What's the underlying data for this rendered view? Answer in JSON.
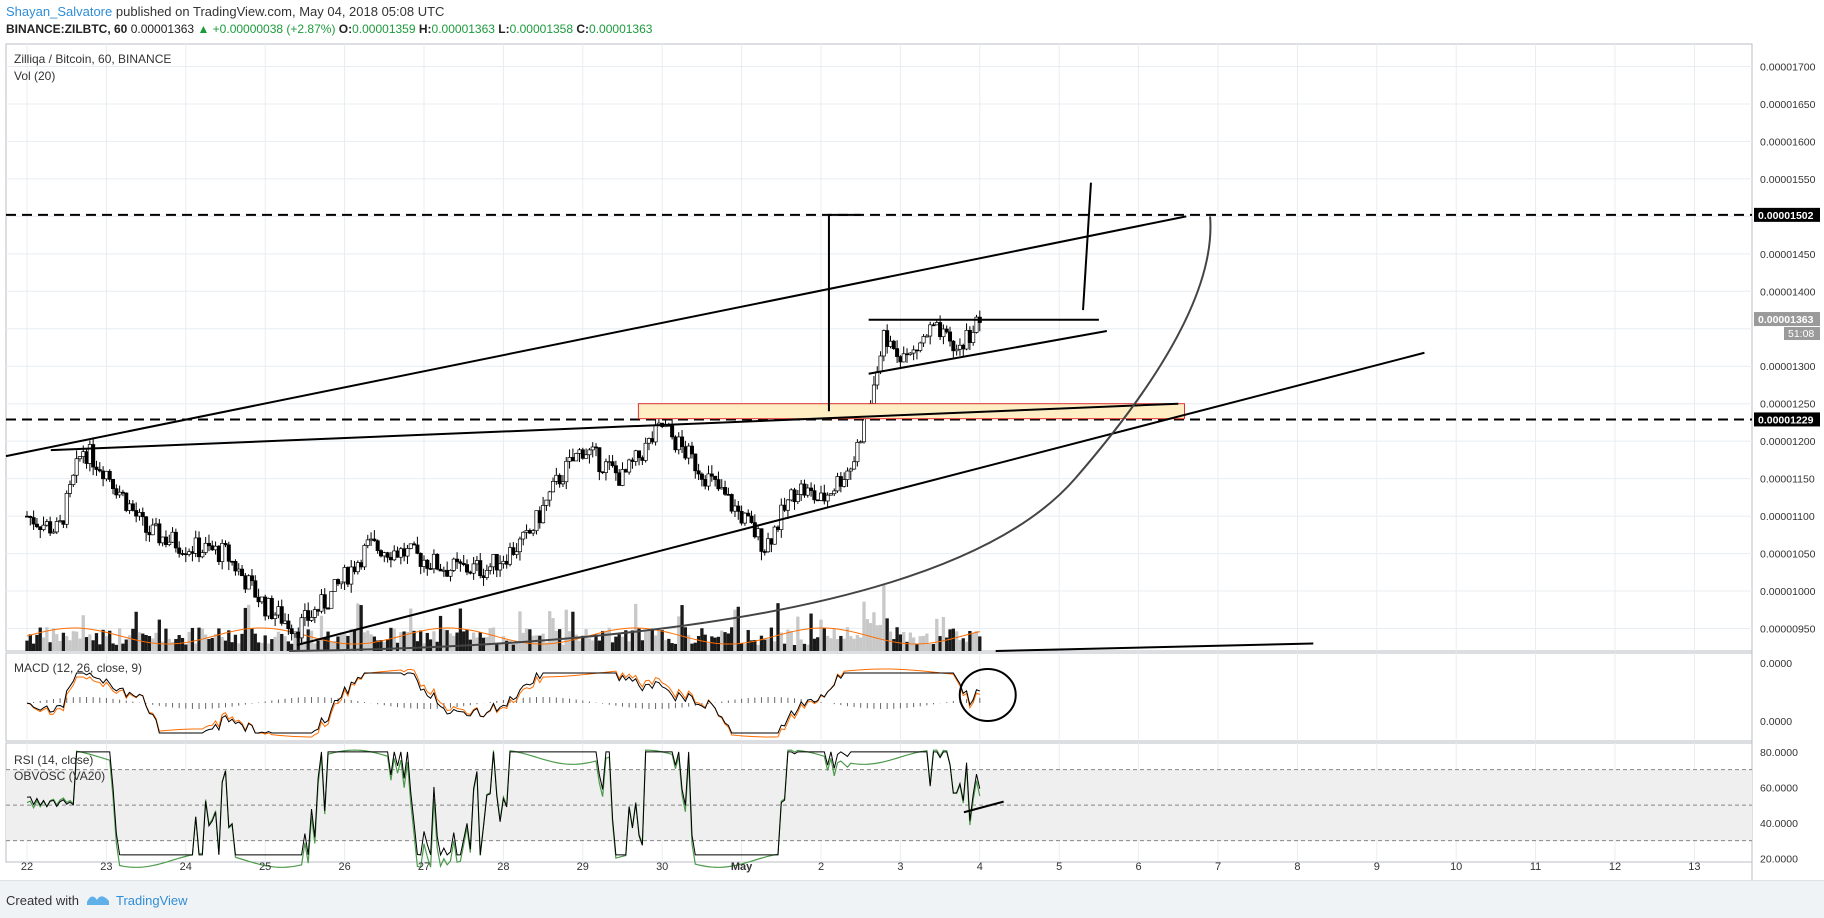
{
  "header": {
    "author": "Shayan_Salvatore",
    "published_text": "published on TradingView.com, May 04, 2018 05:08 UTC",
    "symbol": "BINANCE:ZILBTC, 60",
    "last": "0.00001363",
    "change": "+0.00000038 (+2.87%)",
    "o_label": "O:",
    "o_val": "0.00001359",
    "h_label": "H:",
    "h_val": "0.00001363",
    "l_label": "L:",
    "l_val": "0.00001358",
    "c_label": "C:",
    "c_val": "0.00001363"
  },
  "legend": {
    "main_title": "Zilliqa / Bitcoin, 60, BINANCE",
    "vol": "Vol (20)",
    "macd": "MACD (12, 26, close, 9)",
    "rsi": "RSI (14, close)",
    "obvosc": "OBVOSC (VA20)"
  },
  "footer": {
    "created_with": "Created with",
    "brand": "TradingView",
    "logo_icon": "tradingview-logo-icon"
  },
  "colors": {
    "candle_up": "#ffffff",
    "candle_down": "#000000",
    "macd_line": "#000000",
    "signal_line": "#ff6d00",
    "rsi_up": "#4c9a4c",
    "rsi_down": "#e05050",
    "highlight_zone": "#ffeec4",
    "highlight_border": "#e03030",
    "price_badge": "#000000",
    "last_badge": "#9a9a9a"
  },
  "chart_data": [
    {
      "type": "candlestick",
      "title": "Zilliqa / Bitcoin, 60, BINANCE",
      "x_tick_labels": [
        "22",
        "23",
        "24",
        "25",
        "26",
        "27",
        "28",
        "29",
        "30",
        "May",
        "2",
        "3",
        "4",
        "5",
        "6",
        "7",
        "8",
        "9",
        "10",
        "11",
        "12",
        "13"
      ],
      "y_tick_labels": [
        "0.00001700",
        "0.00001650",
        "0.00001600",
        "0.00001550",
        "0.00001450",
        "0.00001400",
        "0.00001300",
        "0.00001250",
        "0.00001200",
        "0.00001150",
        "0.00001100",
        "0.00001050",
        "0.00001000",
        "0.00000950"
      ],
      "ylim": [
        9.2e-06,
        1.73e-05
      ],
      "price_badges": [
        {
          "value": 1.502e-05,
          "label": "0.00001502"
        },
        {
          "value": 1.229e-05,
          "label": "0.00001229"
        },
        {
          "value": 1.363e-05,
          "label": "0.00001363",
          "countdown": "51:08"
        }
      ],
      "close_series_sampled": [
        {
          "x": 22.0,
          "y": 1.1e-05
        },
        {
          "x": 22.4,
          "y": 1.08e-05
        },
        {
          "x": 22.7,
          "y": 1.19e-05
        },
        {
          "x": 23.0,
          "y": 1.16e-05
        },
        {
          "x": 23.5,
          "y": 1.08e-05
        },
        {
          "x": 24.0,
          "y": 1.06e-05
        },
        {
          "x": 24.5,
          "y": 1.05e-05
        },
        {
          "x": 25.0,
          "y": 9.8e-06
        },
        {
          "x": 25.4,
          "y": 9.5e-06
        },
        {
          "x": 25.8,
          "y": 9.9e-06
        },
        {
          "x": 26.3,
          "y": 1.06e-05
        },
        {
          "x": 26.8,
          "y": 1.05e-05
        },
        {
          "x": 27.3,
          "y": 1.03e-05
        },
        {
          "x": 27.8,
          "y": 1.03e-05
        },
        {
          "x": 28.3,
          "y": 1.07e-05
        },
        {
          "x": 28.7,
          "y": 1.15e-05
        },
        {
          "x": 29.0,
          "y": 1.19e-05
        },
        {
          "x": 29.5,
          "y": 1.15e-05
        },
        {
          "x": 30.0,
          "y": 1.22e-05
        },
        {
          "x": 30.5,
          "y": 1.16e-05
        },
        {
          "x": 31.0,
          "y": 1.1e-05
        },
        {
          "x": 31.3,
          "y": 1.06e-05
        },
        {
          "x": 31.7,
          "y": 1.14e-05
        },
        {
          "x": 32.0,
          "y": 1.12e-05
        },
        {
          "x": 32.4,
          "y": 1.17e-05
        },
        {
          "x": 32.6,
          "y": 1.25e-05
        },
        {
          "x": 32.8,
          "y": 1.34e-05
        },
        {
          "x": 33.1,
          "y": 1.31e-05
        },
        {
          "x": 33.4,
          "y": 1.35e-05
        },
        {
          "x": 33.7,
          "y": 1.32e-05
        },
        {
          "x": 34.0,
          "y": 1.363e-05
        }
      ],
      "annotations": {
        "horizontal_dashed_levels": [
          1.502e-05,
          1.229e-05
        ],
        "highlight_zone": {
          "price_top": 1.25e-05,
          "price_bottom": 1.23e-05
        },
        "pattern": "ascending triangle / channel breakout"
      }
    },
    {
      "type": "line",
      "title": "MACD (12, 26, close, 9)",
      "y_tick_labels": [
        "0.0000",
        "0.0000"
      ]
    },
    {
      "type": "line",
      "title": "RSI (14, close)",
      "y_tick_labels": [
        "80.0000",
        "60.0000",
        "40.0000",
        "20.0000"
      ],
      "ylim": [
        18,
        85
      ],
      "bands": [
        30,
        50,
        70
      ]
    }
  ]
}
